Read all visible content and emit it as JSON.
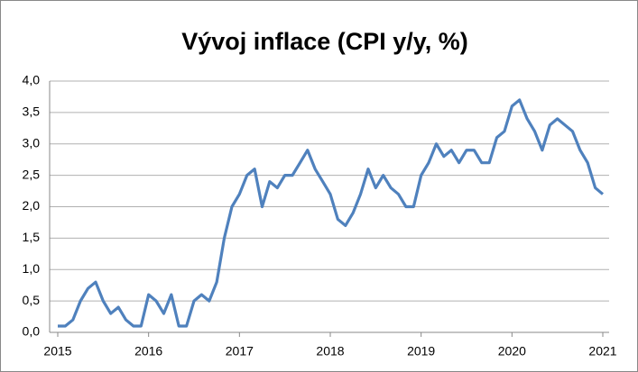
{
  "chart_data": {
    "type": "line",
    "title": "Vývoj inflace (CPI y/y, %)",
    "x": [
      2015,
      2015.083,
      2015.167,
      2015.25,
      2015.333,
      2015.417,
      2015.5,
      2015.583,
      2015.667,
      2015.75,
      2015.833,
      2015.917,
      2016,
      2016.083,
      2016.167,
      2016.25,
      2016.333,
      2016.417,
      2016.5,
      2016.583,
      2016.667,
      2016.75,
      2016.833,
      2016.917,
      2017,
      2017.083,
      2017.167,
      2017.25,
      2017.333,
      2017.417,
      2017.5,
      2017.583,
      2017.667,
      2017.75,
      2017.833,
      2017.917,
      2018,
      2018.083,
      2018.167,
      2018.25,
      2018.333,
      2018.417,
      2018.5,
      2018.583,
      2018.667,
      2018.75,
      2018.833,
      2018.917,
      2019,
      2019.083,
      2019.167,
      2019.25,
      2019.333,
      2019.417,
      2019.5,
      2019.583,
      2019.667,
      2019.75,
      2019.833,
      2019.917,
      2020,
      2020.083,
      2020.167,
      2020.25,
      2020.333,
      2020.417,
      2020.5,
      2020.583,
      2020.667,
      2020.75,
      2020.833,
      2020.917,
      2021
    ],
    "series": [
      {
        "name": "CPI y/y",
        "color": "#4f81bd",
        "values": [
          0.1,
          0.1,
          0.2,
          0.5,
          0.7,
          0.8,
          0.5,
          0.3,
          0.4,
          0.2,
          0.1,
          0.1,
          0.6,
          0.5,
          0.3,
          0.6,
          0.1,
          0.1,
          0.5,
          0.6,
          0.5,
          0.8,
          1.5,
          2.0,
          2.2,
          2.5,
          2.6,
          2.0,
          2.4,
          2.3,
          2.5,
          2.5,
          2.7,
          2.9,
          2.6,
          2.4,
          2.2,
          1.8,
          1.7,
          1.9,
          2.2,
          2.6,
          2.3,
          2.5,
          2.3,
          2.2,
          2.0,
          2.0,
          2.5,
          2.7,
          3.0,
          2.8,
          2.9,
          2.7,
          2.9,
          2.9,
          2.7,
          2.7,
          3.1,
          3.2,
          3.6,
          3.7,
          3.4,
          3.2,
          2.9,
          3.3,
          3.4,
          3.3,
          3.2,
          2.9,
          2.7,
          2.3,
          2.2
        ]
      }
    ],
    "xlim": [
      2015,
      2021
    ],
    "xticks": [
      2015,
      2016,
      2017,
      2018,
      2019,
      2020,
      2021
    ],
    "ylim": [
      0,
      4
    ],
    "yticks": [
      {
        "value": 0,
        "label": "0,0"
      },
      {
        "value": 0.5,
        "label": "0,5"
      },
      {
        "value": 1,
        "label": "1,0"
      },
      {
        "value": 1.5,
        "label": "1,5"
      },
      {
        "value": 2,
        "label": "2,0"
      },
      {
        "value": 2.5,
        "label": "2,5"
      },
      {
        "value": 3,
        "label": "3,0"
      },
      {
        "value": 3.5,
        "label": "3,5"
      },
      {
        "value": 4,
        "label": "4,0"
      }
    ],
    "grid": true
  }
}
